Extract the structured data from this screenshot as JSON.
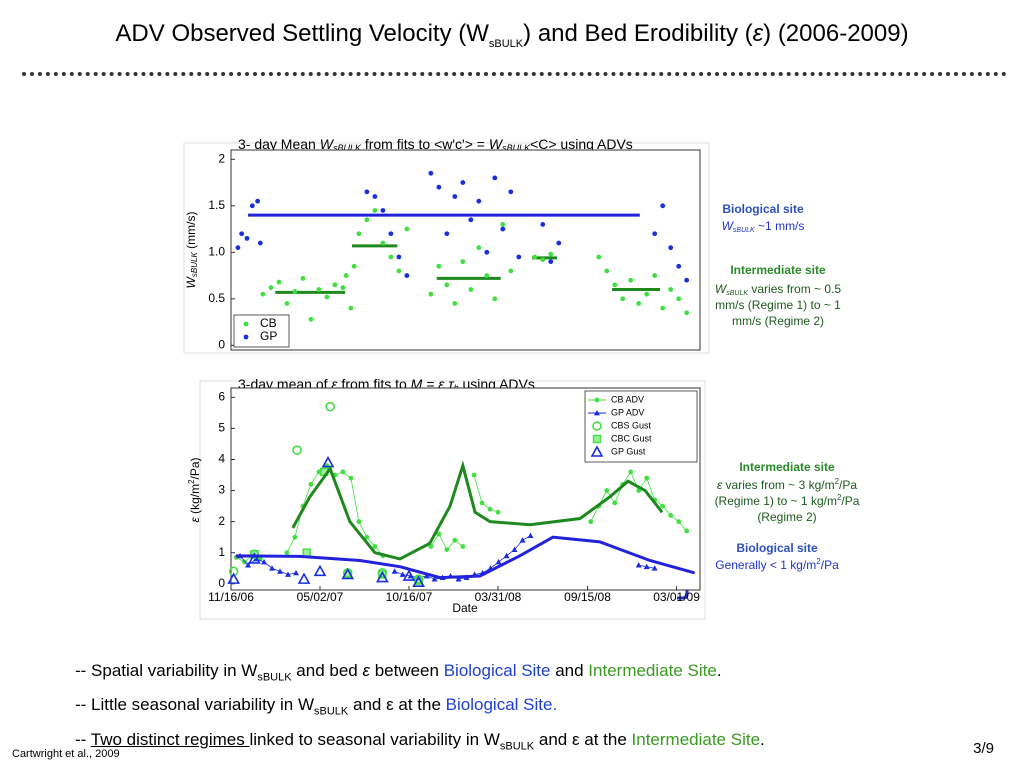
{
  "slide": {
    "title": [
      "ADV Observed Settling Velocity (W",
      "sBULK",
      ") and Bed Erodibility (",
      "ε",
      ") (2006-2009)"
    ],
    "bullets": [
      [
        "-- Spatial variability in W",
        "sBULK",
        " and bed ",
        "ε",
        " between ",
        "Biological Site",
        " and ",
        "Intermediate Site",
        "."
      ],
      [
        "-- Little seasonal variability in W",
        "sBULK",
        " and ε at the ",
        "Biological Site."
      ],
      [
        "-- ",
        "Two distinct regimes ",
        "linked to seasonal variability in W",
        "sBULK",
        " and ε at the ",
        "Intermediate Site",
        "."
      ]
    ],
    "citation": "Cartwright et al., 2009",
    "page": "3/9"
  },
  "chart_data": [
    {
      "type": "scatter",
      "title": [
        "3- day Mean ",
        "W",
        "sBULK",
        " from fits to <w'c'> =  ",
        "W",
        "sBULK",
        "<C> using ADVs"
      ],
      "ylabel": [
        "W",
        "sBULK",
        "  (mm/s)"
      ],
      "xlim": [
        "11/16/06",
        "04/14/09"
      ],
      "ylim": [
        -0.05,
        2.1
      ],
      "yticks": [
        0,
        0.5,
        {
          "value": 1,
          "label": "1.0"
        },
        1.5,
        2
      ],
      "legend": "lower left",
      "series": [
        {
          "name": "CB",
          "color": "#3fe03f",
          "marker": "dot",
          "line": false,
          "x": [
            "01/15/07",
            "01/30/07",
            "02/14/07",
            "03/01/07",
            "03/16/07",
            "03/31/07",
            "04/15/07",
            "04/30/07",
            "05/15/07",
            "05/30/07",
            "06/14/07",
            "06/29/07",
            "06/20/07",
            "07/05/07",
            "07/14/07",
            "07/29/07",
            "08/13/07",
            "08/28/07",
            "09/12/07",
            "09/27/07",
            "10/12/07",
            "11/26/07",
            "12/11/07",
            "12/26/07",
            "01/10/08",
            "01/25/08",
            "02/09/08",
            "02/24/08",
            "03/10/08",
            "03/25/08",
            "04/09/08",
            "04/24/08",
            "06/08/08",
            "06/23/08",
            "07/08/08",
            "10/06/08",
            "10/21/08",
            "11/05/08",
            "11/20/08",
            "12/05/08",
            "12/20/08",
            "01/04/09",
            "01/19/09",
            "02/03/09",
            "02/18/09",
            "03/05/09",
            "03/20/09"
          ],
          "values": [
            0.55,
            0.62,
            0.68,
            0.45,
            0.58,
            0.72,
            0.28,
            0.6,
            0.52,
            0.65,
            0.62,
            0.4,
            0.75,
            0.85,
            1.2,
            1.35,
            1.45,
            1.1,
            0.95,
            0.8,
            1.25,
            0.55,
            0.85,
            0.65,
            0.45,
            0.9,
            0.6,
            1.05,
            0.75,
            0.5,
            1.3,
            0.8,
            0.95,
            0.92,
            0.98,
            0.95,
            0.8,
            0.65,
            0.5,
            0.7,
            0.45,
            0.55,
            0.75,
            0.4,
            0.6,
            0.5,
            0.35
          ]
        },
        {
          "name": "GP",
          "color": "#1a2ee0",
          "marker": "dot",
          "line": false,
          "x": [
            "11/29/06",
            "12/06/06",
            "12/16/06",
            "12/26/06",
            "01/05/07",
            "01/10/07",
            "07/29/07",
            "08/13/07",
            "08/28/07",
            "09/12/07",
            "09/27/07",
            "10/12/07",
            "11/26/07",
            "12/11/07",
            "12/26/07",
            "01/10/08",
            "01/25/08",
            "02/09/08",
            "02/24/08",
            "03/10/08",
            "03/25/08",
            "04/09/08",
            "04/24/08",
            "05/09/08",
            "06/23/08",
            "07/08/08",
            "07/23/08",
            "01/19/09",
            "02/03/09",
            "02/18/09",
            "03/05/09",
            "03/20/09"
          ],
          "values": [
            1.05,
            1.2,
            1.15,
            1.5,
            1.55,
            1.1,
            1.65,
            1.6,
            1.45,
            1.2,
            0.95,
            0.75,
            1.85,
            1.7,
            1.2,
            1.6,
            1.75,
            1.35,
            1.55,
            1.0,
            1.8,
            1.25,
            1.65,
            0.95,
            1.3,
            0.9,
            1.1,
            1.2,
            1.5,
            1.05,
            0.85,
            0.7
          ]
        }
      ],
      "mean_lines": [
        {
          "color": "#1e8a1e",
          "x": [
            "02/07/07",
            "06/18/07"
          ],
          "values": [
            0.57,
            0.57
          ]
        },
        {
          "color": "#1e8a1e",
          "x": [
            "07/01/07",
            "09/24/07"
          ],
          "values": [
            1.07,
            1.07
          ]
        },
        {
          "color": "#1e8a1e",
          "x": [
            "12/07/07",
            "04/05/08"
          ],
          "values": [
            0.72,
            0.72
          ]
        },
        {
          "color": "#1e8a1e",
          "x": [
            "06/03/08",
            "07/20/08"
          ],
          "values": [
            0.94,
            0.94
          ]
        },
        {
          "color": "#1e8a1e",
          "x": [
            "10/31/08",
            "01/29/09"
          ],
          "values": [
            0.6,
            0.6
          ]
        },
        {
          "color": "#2222dd",
          "x": [
            "12/18/06",
            "12/22/08"
          ],
          "values": [
            1.4,
            1.4
          ]
        }
      ],
      "annotations": [
        {
          "heading": "Biological site",
          "lines": [
            [
              "W",
              "sBULK",
              " ~1 mm/s"
            ]
          ]
        },
        {
          "heading": "Intermediate site",
          "lines": [
            [
              "W",
              "sBULK",
              " varies from  ~ 0.5"
            ],
            [
              "mm/s (Regime 1) to ~ 1"
            ],
            [
              "mm/s  (Regime 2)"
            ]
          ]
        }
      ]
    },
    {
      "type": "line",
      "title": [
        "3-day mean of ",
        "ε",
        " from fits to  ",
        "M = ε τ",
        "b",
        "  using ADVs"
      ],
      "ylabel": [
        "ε",
        "  (kg/m",
        "2",
        "/Pa)"
      ],
      "xlabel": "Date",
      "xlim": [
        "11/16/06",
        "04/14/09"
      ],
      "xticks": [
        "11/16/06",
        "05/02/07",
        "10/16/07",
        "03/31/08",
        "09/15/08",
        "03/01/09"
      ],
      "ylim": [
        -0.2,
        6.3
      ],
      "yticks": [
        0,
        1,
        2,
        3,
        4,
        5,
        6
      ],
      "legend": "upper right",
      "series": [
        {
          "name": "CB ADV",
          "color": "#3fe03f",
          "marker": "dot",
          "line": true,
          "x": [
            "11/26/06",
            "12/11/06",
            "12/26/06",
            "01/10/07",
            null,
            "03/01/07",
            "03/16/07",
            "03/31/07",
            "04/15/07",
            "04/30/07",
            "05/15/07",
            "05/30/07",
            "06/14/07",
            "06/29/07",
            "07/14/07",
            "07/29/07",
            "08/13/07",
            "08/28/07",
            null,
            "11/26/07",
            "12/11/07",
            "12/26/07",
            "01/10/08",
            "01/25/08",
            null,
            "02/15/08",
            "03/01/08",
            "03/16/08",
            "03/31/08",
            null,
            "09/21/08",
            "10/06/08",
            "10/21/08",
            "11/05/08",
            "11/20/08",
            "12/05/08",
            "12/20/08",
            "01/04/09",
            "01/19/09",
            "02/03/09",
            "02/18/09",
            "03/05/09",
            "03/20/09"
          ],
          "values": [
            0.85,
            0.7,
            0.9,
            0.8,
            null,
            1.0,
            1.5,
            2.5,
            3.2,
            3.6,
            3.8,
            3.5,
            3.6,
            3.4,
            2.0,
            1.5,
            1.2,
            0.9,
            null,
            1.2,
            1.6,
            1.1,
            1.4,
            1.2,
            null,
            3.5,
            2.6,
            2.4,
            2.3,
            null,
            2.0,
            2.5,
            3.0,
            2.6,
            3.2,
            3.6,
            3.0,
            3.4,
            2.7,
            2.5,
            2.2,
            2.0,
            1.7
          ]
        },
        {
          "name": "GP ADV",
          "color": "#1a2ee0",
          "marker": "triangle",
          "line": true,
          "x": [
            "12/03/06",
            "12/18/06",
            "01/02/07",
            "01/17/07",
            "02/01/07",
            "02/16/07",
            "03/03/07",
            "03/18/07",
            null,
            "09/19/07",
            "10/04/07",
            "10/19/07",
            "11/03/07",
            "11/18/07",
            "12/03/07",
            "12/18/07",
            "01/02/08",
            "01/17/08",
            "02/01/08",
            "02/16/08",
            "03/02/08",
            "03/17/08",
            "04/01/08",
            "04/16/08",
            "05/01/08",
            "05/16/08",
            "05/31/08",
            null,
            "12/20/08",
            "01/04/09",
            "01/19/09"
          ],
          "values": [
            0.9,
            0.6,
            0.8,
            0.7,
            0.5,
            0.4,
            0.3,
            0.35,
            null,
            0.4,
            0.3,
            0.25,
            0.2,
            0.25,
            0.15,
            0.2,
            0.25,
            0.15,
            0.2,
            0.3,
            0.35,
            0.5,
            0.7,
            0.9,
            1.1,
            1.4,
            1.55,
            null,
            0.6,
            0.55,
            0.5
          ]
        },
        {
          "name": "CBS Gust",
          "color": "#3fe03f",
          "marker": "circle",
          "line": false,
          "x": [
            "11/21/06",
            "12/30/06",
            "03/20/07",
            "05/21/07",
            "06/23/07",
            "08/27/07",
            "11/03/07"
          ],
          "values": [
            0.4,
            0.95,
            4.3,
            5.7,
            0.35,
            0.35,
            0.15
          ]
        },
        {
          "name": "CBC Gust",
          "color": "#3fe03f",
          "marker": "square",
          "line": false,
          "x": [
            "12/30/06",
            "04/07/07",
            "05/10/07",
            "06/23/07",
            "08/27/07",
            "11/03/07"
          ],
          "values": [
            0.95,
            1.0,
            3.6,
            0.3,
            0.3,
            0.1
          ]
        },
        {
          "name": "GP Gust",
          "color": "#1a2ee0",
          "marker": "open-triangle",
          "line": false,
          "x": [
            "11/21/06",
            "12/30/06",
            "04/02/07",
            "05/02/07",
            "05/17/07",
            "06/23/07",
            "08/27/07",
            "10/16/07",
            "11/03/07"
          ],
          "values": [
            0.15,
            0.8,
            0.15,
            0.4,
            3.9,
            0.3,
            0.2,
            0.25,
            0.05
          ]
        }
      ],
      "fits": [
        {
          "color": "#1e8a1e",
          "x": [
            "03/12/07",
            "04/13/07",
            "05/21/07",
            "06/27/07",
            "08/13/07",
            "09/29/07",
            "11/24/07",
            "01/01/08",
            "01/25/08",
            "02/17/08",
            "03/16/08",
            "05/30/08",
            "09/01/08",
            "10/27/08",
            "11/30/08",
            "01/01/09",
            "02/02/09"
          ],
          "values": [
            1.8,
            2.8,
            3.7,
            2.0,
            1.0,
            0.8,
            1.3,
            2.5,
            3.8,
            2.3,
            2.0,
            1.9,
            2.1,
            2.8,
            3.3,
            3.0,
            2.3
          ]
        },
        {
          "color": "#2222dd",
          "x": [
            "11/25/06",
            "03/25/07",
            "07/16/07",
            "09/29/07",
            "12/13/07",
            "02/26/08",
            "05/11/08",
            "07/12/08",
            "10/08/08",
            "01/10/09",
            "04/04/09"
          ],
          "values": [
            0.9,
            0.88,
            0.75,
            0.55,
            0.2,
            0.25,
            0.9,
            1.5,
            1.35,
            0.75,
            0.35
          ]
        }
      ],
      "annotations": [
        {
          "heading": "Intermediate site",
          "lines": [
            [
              "ε",
              " varies from ~ 3 kg/m",
              "2",
              "/Pa"
            ],
            [
              "(Regime 1) to  ~ 1 kg/m",
              "2",
              "/Pa"
            ],
            [
              "(Regime 2)"
            ]
          ]
        },
        {
          "heading": "Biological site",
          "lines": [
            [
              "Generally < 1 kg/m",
              "2",
              "/Pa"
            ]
          ]
        }
      ]
    }
  ]
}
